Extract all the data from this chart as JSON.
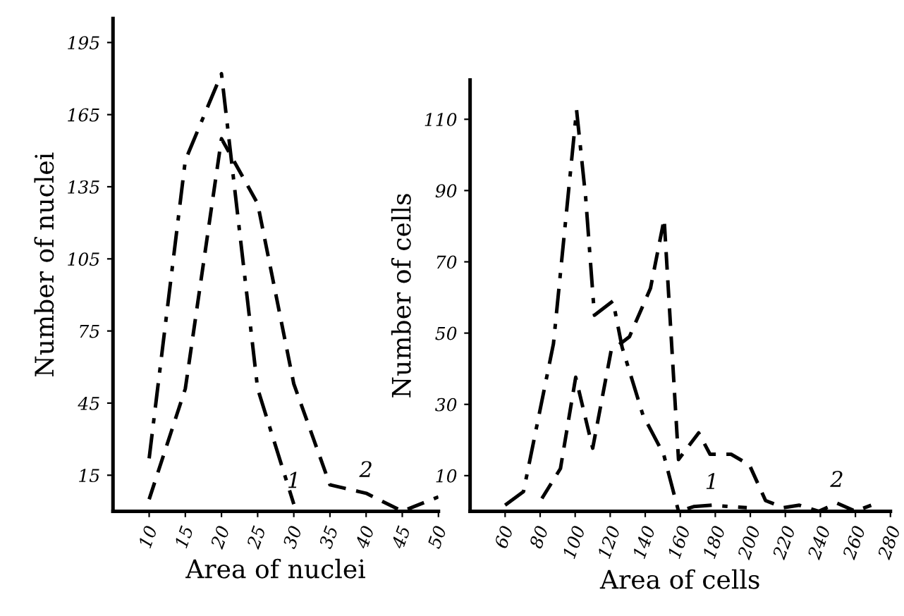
{
  "chart_data": [
    {
      "type": "line",
      "xlabel": "Area of nuclei",
      "ylabel": "Number of nuclei",
      "xlim": [
        5,
        50
      ],
      "xticks": [
        10,
        15,
        20,
        25,
        30,
        35,
        40,
        45,
        50
      ],
      "ylim": [
        0,
        205
      ],
      "yticks": [
        15,
        45,
        75,
        105,
        135,
        165,
        195
      ],
      "grid": false,
      "legend": false,
      "marker": "none",
      "series": [
        {
          "color": "#000000",
          "line_style": "dashdot",
          "x": [
            10,
            15,
            20,
            25,
            30
          ],
          "values": [
            22,
            146,
            182,
            51,
            3
          ]
        },
        {
          "color": "#000000",
          "line_style": "dashed",
          "x": [
            10,
            15,
            20,
            25,
            30,
            35,
            40,
            45,
            50
          ],
          "values": [
            5,
            51,
            155,
            128,
            53,
            11,
            7.5,
            0,
            6
          ]
        }
      ],
      "annotations": [
        {
          "text": "1",
          "x": 30,
          "y": 3
        },
        {
          "text": "2",
          "x": 40,
          "y": 7.5
        }
      ]
    },
    {
      "type": "line",
      "xlabel": "Area of cells",
      "ylabel": "Number of cells",
      "xlim": [
        40,
        280
      ],
      "xticks": [
        60,
        80,
        100,
        120,
        140,
        160,
        180,
        200,
        220,
        240,
        260,
        280
      ],
      "ylim": [
        0,
        121
      ],
      "yticks": [
        10,
        30,
        50,
        70,
        90,
        110
      ],
      "grid": false,
      "legend": false,
      "marker": "none",
      "series": [
        {
          "color": "#000000",
          "line_style": "dashdot",
          "x": [
            60,
            70.5,
            87.6,
            100.8,
            106,
            111,
            121.6,
            126.8,
            138.7,
            150.5,
            159,
            167.6,
            178,
            198
          ],
          "values": [
            1.7,
            5.5,
            47,
            112.6,
            88,
            55,
            59,
            46,
            27,
            16,
            0,
            1.3,
            1.7,
            1
          ]
        },
        {
          "color": "#000000",
          "line_style": "dashed",
          "x": [
            81,
            91.6,
            100.3,
            110,
            120.5,
            131,
            143,
            150.8,
            159,
            170.5,
            177,
            189,
            199.5,
            208.7,
            219,
            228,
            239,
            249.5,
            260,
            269
          ],
          "values": [
            3.6,
            12,
            37.6,
            17.7,
            45,
            49,
            62.6,
            82,
            14.5,
            22,
            16,
            16,
            13,
            3,
            1,
            1.7,
            0,
            2.3,
            0,
            1.7
          ]
        }
      ],
      "annotations": [
        {
          "text": "1",
          "x": 178,
          "y": 1.7
        },
        {
          "text": "2",
          "x": 249.5,
          "y": 2.3
        }
      ]
    }
  ]
}
